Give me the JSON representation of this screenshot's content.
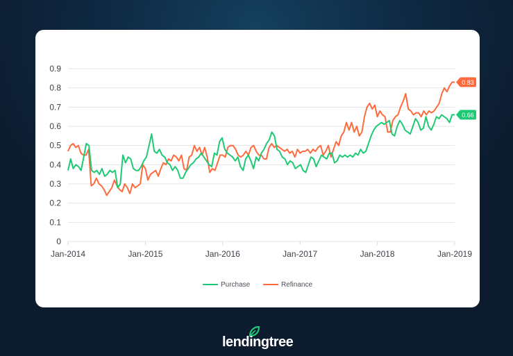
{
  "chart_data": {
    "type": "line",
    "title": "",
    "xlabel": "",
    "ylabel": "",
    "ylim": [
      0,
      0.9
    ],
    "yticks": [
      "0",
      "0.1",
      "0.2",
      "0.3",
      "0.4",
      "0.5",
      "0.6",
      "0.7",
      "0.8",
      "0.9"
    ],
    "ytick_values": [
      0,
      0.1,
      0.2,
      0.3,
      0.4,
      0.5,
      0.6,
      0.7,
      0.8,
      0.9
    ],
    "xticks": [
      "Jan-2014",
      "Jan-2015",
      "Jan-2016",
      "Jan-2017",
      "Jan-2018",
      "Jan-2019"
    ],
    "xlim_years": [
      2014,
      2019
    ],
    "grid": true,
    "legend_position": "bottom-center",
    "series": [
      {
        "name": "Purchase",
        "color": "#1ec975",
        "end_label": "0.66",
        "values": [
          0.37,
          0.43,
          0.38,
          0.4,
          0.39,
          0.37,
          0.44,
          0.51,
          0.5,
          0.37,
          0.36,
          0.37,
          0.35,
          0.38,
          0.34,
          0.35,
          0.37,
          0.36,
          0.37,
          0.28,
          0.3,
          0.45,
          0.41,
          0.44,
          0.43,
          0.38,
          0.37,
          0.37,
          0.39,
          0.42,
          0.44,
          0.5,
          0.56,
          0.47,
          0.46,
          0.48,
          0.45,
          0.44,
          0.41,
          0.4,
          0.37,
          0.39,
          0.37,
          0.33,
          0.33,
          0.36,
          0.38,
          0.4,
          0.41,
          0.43,
          0.44,
          0.46,
          0.44,
          0.42,
          0.4,
          0.39,
          0.46,
          0.45,
          0.52,
          0.54,
          0.48,
          0.46,
          0.45,
          0.44,
          0.42,
          0.44,
          0.39,
          0.37,
          0.43,
          0.45,
          0.42,
          0.38,
          0.44,
          0.42,
          0.46,
          0.48,
          0.51,
          0.53,
          0.57,
          0.55,
          0.48,
          0.47,
          0.44,
          0.43,
          0.4,
          0.42,
          0.41,
          0.38,
          0.39,
          0.4,
          0.37,
          0.36,
          0.4,
          0.44,
          0.43,
          0.39,
          0.42,
          0.45,
          0.44,
          0.43,
          0.46,
          0.46,
          0.41,
          0.42,
          0.45,
          0.44,
          0.45,
          0.44,
          0.45,
          0.44,
          0.46,
          0.45,
          0.48,
          0.46,
          0.47,
          0.51,
          0.55,
          0.58,
          0.6,
          0.61,
          0.62,
          0.61,
          0.62,
          0.63,
          0.56,
          0.55,
          0.6,
          0.63,
          0.61,
          0.58,
          0.57,
          0.56,
          0.6,
          0.64,
          0.62,
          0.58,
          0.59,
          0.65,
          0.6,
          0.58,
          0.61,
          0.65,
          0.64,
          0.66,
          0.65,
          0.64,
          0.62,
          0.66,
          0.66
        ]
      },
      {
        "name": "Refinance",
        "color": "#ff6a3d",
        "end_label": "0.83",
        "values": [
          0.47,
          0.5,
          0.51,
          0.49,
          0.5,
          0.46,
          0.45,
          0.45,
          0.48,
          0.29,
          0.3,
          0.33,
          0.3,
          0.29,
          0.27,
          0.24,
          0.26,
          0.28,
          0.32,
          0.29,
          0.27,
          0.26,
          0.3,
          0.28,
          0.25,
          0.3,
          0.28,
          0.29,
          0.3,
          0.4,
          0.38,
          0.32,
          0.35,
          0.36,
          0.37,
          0.34,
          0.38,
          0.41,
          0.4,
          0.43,
          0.42,
          0.45,
          0.44,
          0.42,
          0.45,
          0.38,
          0.37,
          0.44,
          0.45,
          0.5,
          0.47,
          0.49,
          0.45,
          0.49,
          0.44,
          0.36,
          0.38,
          0.37,
          0.41,
          0.45,
          0.45,
          0.44,
          0.49,
          0.5,
          0.5,
          0.48,
          0.45,
          0.44,
          0.45,
          0.47,
          0.45,
          0.49,
          0.5,
          0.47,
          0.45,
          0.45,
          0.43,
          0.43,
          0.49,
          0.51,
          0.49,
          0.5,
          0.49,
          0.48,
          0.47,
          0.48,
          0.46,
          0.47,
          0.44,
          0.48,
          0.46,
          0.47,
          0.47,
          0.48,
          0.46,
          0.48,
          0.47,
          0.49,
          0.5,
          0.45,
          0.47,
          0.5,
          0.44,
          0.48,
          0.52,
          0.5,
          0.55,
          0.57,
          0.62,
          0.58,
          0.62,
          0.57,
          0.6,
          0.55,
          0.57,
          0.65,
          0.7,
          0.72,
          0.69,
          0.71,
          0.65,
          0.68,
          0.66,
          0.65,
          0.57,
          0.57,
          0.63,
          0.65,
          0.66,
          0.7,
          0.73,
          0.77,
          0.69,
          0.68,
          0.66,
          0.67,
          0.67,
          0.65,
          0.68,
          0.66,
          0.68,
          0.67,
          0.68,
          0.7,
          0.72,
          0.77,
          0.8,
          0.78,
          0.81,
          0.83,
          0.83
        ]
      }
    ]
  },
  "brand": {
    "logo_text": "lendingtree",
    "leaf_color": "#1ec975"
  }
}
